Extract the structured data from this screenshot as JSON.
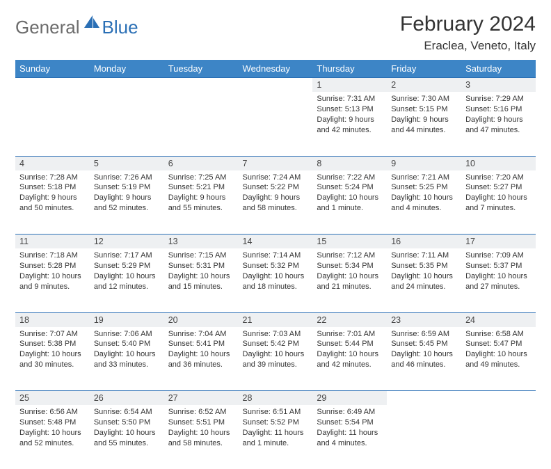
{
  "brand": {
    "general": "General",
    "blue": "Blue"
  },
  "title": "February 2024",
  "location": "Eraclea, Veneto, Italy",
  "colors": {
    "header_bg": "#3d85c6",
    "header_text": "#ffffff",
    "daynum_bg": "#eef0f2",
    "divider": "#2a6fb5",
    "logo_gray": "#6b6b6b",
    "logo_blue": "#2a6fb5",
    "text": "#333333"
  },
  "daysOfWeek": [
    "Sunday",
    "Monday",
    "Tuesday",
    "Wednesday",
    "Thursday",
    "Friday",
    "Saturday"
  ],
  "weeks": [
    [
      null,
      null,
      null,
      null,
      {
        "n": "1",
        "sunrise": "Sunrise: 7:31 AM",
        "sunset": "Sunset: 5:13 PM",
        "day1": "Daylight: 9 hours",
        "day2": "and 42 minutes."
      },
      {
        "n": "2",
        "sunrise": "Sunrise: 7:30 AM",
        "sunset": "Sunset: 5:15 PM",
        "day1": "Daylight: 9 hours",
        "day2": "and 44 minutes."
      },
      {
        "n": "3",
        "sunrise": "Sunrise: 7:29 AM",
        "sunset": "Sunset: 5:16 PM",
        "day1": "Daylight: 9 hours",
        "day2": "and 47 minutes."
      }
    ],
    [
      {
        "n": "4",
        "sunrise": "Sunrise: 7:28 AM",
        "sunset": "Sunset: 5:18 PM",
        "day1": "Daylight: 9 hours",
        "day2": "and 50 minutes."
      },
      {
        "n": "5",
        "sunrise": "Sunrise: 7:26 AM",
        "sunset": "Sunset: 5:19 PM",
        "day1": "Daylight: 9 hours",
        "day2": "and 52 minutes."
      },
      {
        "n": "6",
        "sunrise": "Sunrise: 7:25 AM",
        "sunset": "Sunset: 5:21 PM",
        "day1": "Daylight: 9 hours",
        "day2": "and 55 minutes."
      },
      {
        "n": "7",
        "sunrise": "Sunrise: 7:24 AM",
        "sunset": "Sunset: 5:22 PM",
        "day1": "Daylight: 9 hours",
        "day2": "and 58 minutes."
      },
      {
        "n": "8",
        "sunrise": "Sunrise: 7:22 AM",
        "sunset": "Sunset: 5:24 PM",
        "day1": "Daylight: 10 hours",
        "day2": "and 1 minute."
      },
      {
        "n": "9",
        "sunrise": "Sunrise: 7:21 AM",
        "sunset": "Sunset: 5:25 PM",
        "day1": "Daylight: 10 hours",
        "day2": "and 4 minutes."
      },
      {
        "n": "10",
        "sunrise": "Sunrise: 7:20 AM",
        "sunset": "Sunset: 5:27 PM",
        "day1": "Daylight: 10 hours",
        "day2": "and 7 minutes."
      }
    ],
    [
      {
        "n": "11",
        "sunrise": "Sunrise: 7:18 AM",
        "sunset": "Sunset: 5:28 PM",
        "day1": "Daylight: 10 hours",
        "day2": "and 9 minutes."
      },
      {
        "n": "12",
        "sunrise": "Sunrise: 7:17 AM",
        "sunset": "Sunset: 5:29 PM",
        "day1": "Daylight: 10 hours",
        "day2": "and 12 minutes."
      },
      {
        "n": "13",
        "sunrise": "Sunrise: 7:15 AM",
        "sunset": "Sunset: 5:31 PM",
        "day1": "Daylight: 10 hours",
        "day2": "and 15 minutes."
      },
      {
        "n": "14",
        "sunrise": "Sunrise: 7:14 AM",
        "sunset": "Sunset: 5:32 PM",
        "day1": "Daylight: 10 hours",
        "day2": "and 18 minutes."
      },
      {
        "n": "15",
        "sunrise": "Sunrise: 7:12 AM",
        "sunset": "Sunset: 5:34 PM",
        "day1": "Daylight: 10 hours",
        "day2": "and 21 minutes."
      },
      {
        "n": "16",
        "sunrise": "Sunrise: 7:11 AM",
        "sunset": "Sunset: 5:35 PM",
        "day1": "Daylight: 10 hours",
        "day2": "and 24 minutes."
      },
      {
        "n": "17",
        "sunrise": "Sunrise: 7:09 AM",
        "sunset": "Sunset: 5:37 PM",
        "day1": "Daylight: 10 hours",
        "day2": "and 27 minutes."
      }
    ],
    [
      {
        "n": "18",
        "sunrise": "Sunrise: 7:07 AM",
        "sunset": "Sunset: 5:38 PM",
        "day1": "Daylight: 10 hours",
        "day2": "and 30 minutes."
      },
      {
        "n": "19",
        "sunrise": "Sunrise: 7:06 AM",
        "sunset": "Sunset: 5:40 PM",
        "day1": "Daylight: 10 hours",
        "day2": "and 33 minutes."
      },
      {
        "n": "20",
        "sunrise": "Sunrise: 7:04 AM",
        "sunset": "Sunset: 5:41 PM",
        "day1": "Daylight: 10 hours",
        "day2": "and 36 minutes."
      },
      {
        "n": "21",
        "sunrise": "Sunrise: 7:03 AM",
        "sunset": "Sunset: 5:42 PM",
        "day1": "Daylight: 10 hours",
        "day2": "and 39 minutes."
      },
      {
        "n": "22",
        "sunrise": "Sunrise: 7:01 AM",
        "sunset": "Sunset: 5:44 PM",
        "day1": "Daylight: 10 hours",
        "day2": "and 42 minutes."
      },
      {
        "n": "23",
        "sunrise": "Sunrise: 6:59 AM",
        "sunset": "Sunset: 5:45 PM",
        "day1": "Daylight: 10 hours",
        "day2": "and 46 minutes."
      },
      {
        "n": "24",
        "sunrise": "Sunrise: 6:58 AM",
        "sunset": "Sunset: 5:47 PM",
        "day1": "Daylight: 10 hours",
        "day2": "and 49 minutes."
      }
    ],
    [
      {
        "n": "25",
        "sunrise": "Sunrise: 6:56 AM",
        "sunset": "Sunset: 5:48 PM",
        "day1": "Daylight: 10 hours",
        "day2": "and 52 minutes."
      },
      {
        "n": "26",
        "sunrise": "Sunrise: 6:54 AM",
        "sunset": "Sunset: 5:50 PM",
        "day1": "Daylight: 10 hours",
        "day2": "and 55 minutes."
      },
      {
        "n": "27",
        "sunrise": "Sunrise: 6:52 AM",
        "sunset": "Sunset: 5:51 PM",
        "day1": "Daylight: 10 hours",
        "day2": "and 58 minutes."
      },
      {
        "n": "28",
        "sunrise": "Sunrise: 6:51 AM",
        "sunset": "Sunset: 5:52 PM",
        "day1": "Daylight: 11 hours",
        "day2": "and 1 minute."
      },
      {
        "n": "29",
        "sunrise": "Sunrise: 6:49 AM",
        "sunset": "Sunset: 5:54 PM",
        "day1": "Daylight: 11 hours",
        "day2": "and 4 minutes."
      },
      null,
      null
    ]
  ]
}
